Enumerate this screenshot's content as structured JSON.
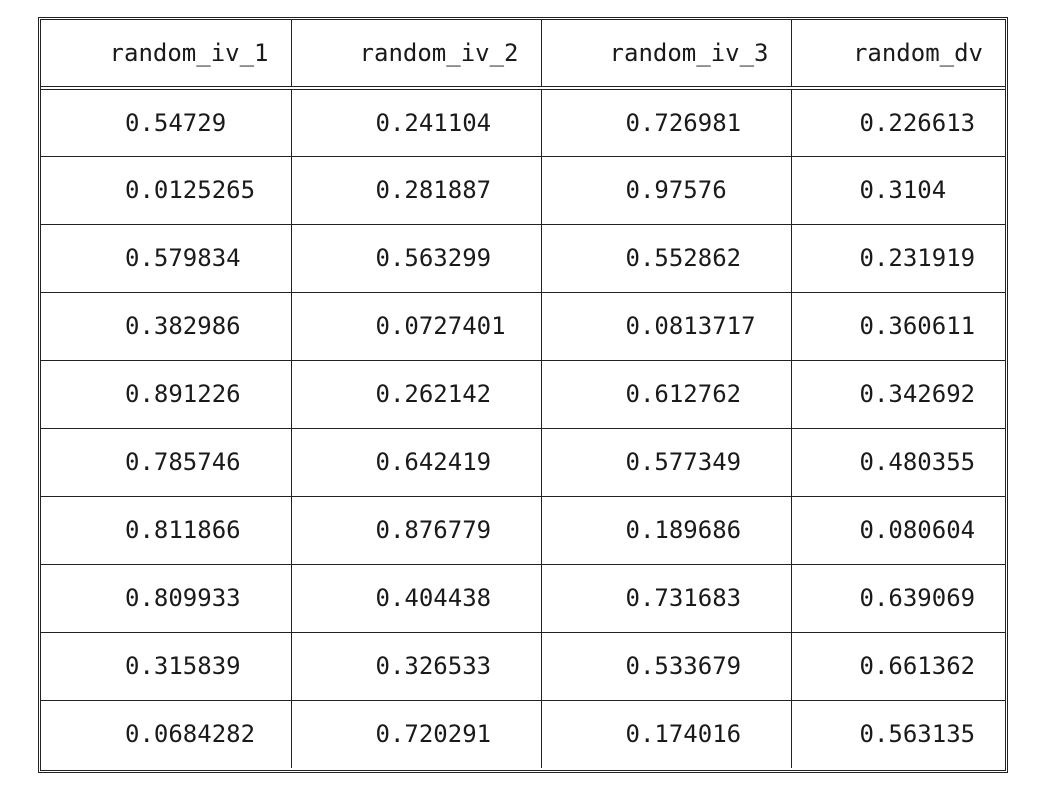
{
  "table": {
    "columns": [
      "random_iv_1",
      "random_iv_2",
      "random_iv_3",
      "random_dv"
    ],
    "rows": [
      [
        "0.54729",
        "0.241104",
        "0.726981",
        "0.226613"
      ],
      [
        "0.0125265",
        "0.281887",
        "0.97576",
        "0.3104"
      ],
      [
        "0.579834",
        "0.563299",
        "0.552862",
        "0.231919"
      ],
      [
        "0.382986",
        "0.0727401",
        "0.0813717",
        "0.360611"
      ],
      [
        "0.891226",
        "0.262142",
        "0.612762",
        "0.342692"
      ],
      [
        "0.785746",
        "0.642419",
        "0.577349",
        "0.480355"
      ],
      [
        "0.811866",
        "0.876779",
        "0.189686",
        "0.080604"
      ],
      [
        "0.809933",
        "0.404438",
        "0.731683",
        "0.639069"
      ],
      [
        "0.315839",
        "0.326533",
        "0.533679",
        "0.661362"
      ],
      [
        "0.0684282",
        "0.720291",
        "0.174016",
        "0.563135"
      ]
    ]
  }
}
